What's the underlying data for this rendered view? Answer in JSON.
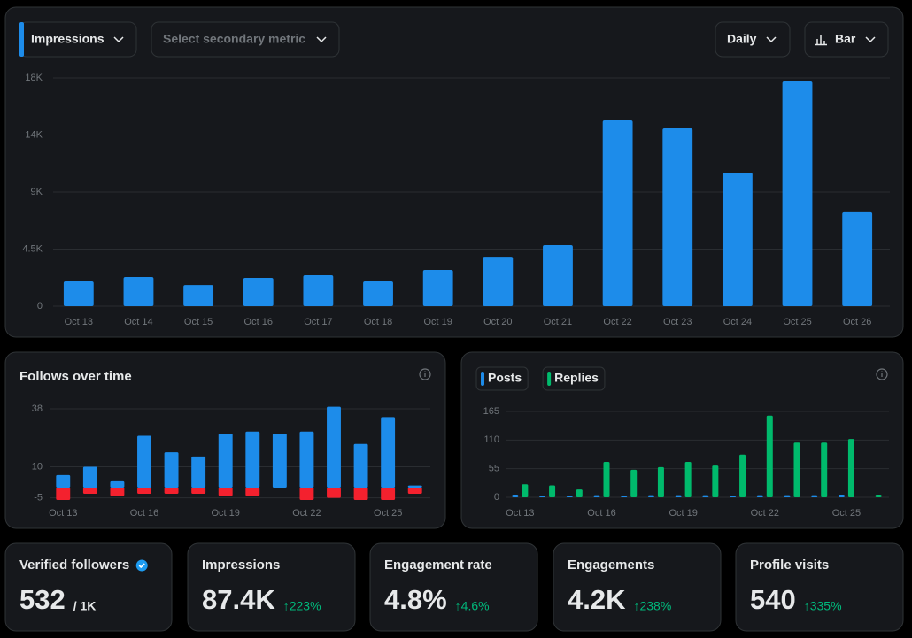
{
  "controls": {
    "primary_metric": "Impressions",
    "secondary_metric": "Select secondary metric",
    "interval": "Daily",
    "chart_type": "Bar"
  },
  "chart_data": [
    {
      "type": "bar",
      "categories": [
        "Oct 13",
        "Oct 14",
        "Oct 15",
        "Oct 16",
        "Oct 17",
        "Oct 18",
        "Oct 19",
        "Oct 20",
        "Oct 21",
        "Oct 22",
        "Oct 23",
        "Oct 24",
        "Oct 25",
        "Oct 26"
      ],
      "values": [
        1950,
        2300,
        1670,
        2230,
        2440,
        1950,
        2860,
        3900,
        4810,
        14650,
        14020,
        10530,
        17720,
        7400
      ],
      "color": "#1d8cea",
      "ylim": [
        0,
        18000
      ],
      "yticks": [
        0,
        {
          "value": 4500,
          "label": "4.5K"
        },
        {
          "value": 9000,
          "label": "9K"
        },
        {
          "value": 13500,
          "label": "14K"
        },
        {
          "value": 18000,
          "label": "18K"
        }
      ],
      "grid": true
    },
    {
      "type": "stacked_bar",
      "title": "Follows over time",
      "categories": [
        "Oct 13",
        null,
        null,
        "Oct 16",
        null,
        null,
        "Oct 19",
        null,
        null,
        "Oct 22",
        null,
        null,
        "Oct 25",
        null
      ],
      "series": [
        {
          "color": "#1d8cea",
          "values": [
            6,
            10,
            3,
            25,
            17,
            15,
            26,
            27,
            26,
            27,
            39,
            21,
            34,
            1
          ]
        },
        {
          "color": "#f4212e",
          "values": [
            -6,
            -3,
            -4,
            -3,
            -3,
            -3,
            -4,
            -4,
            0,
            -6,
            -5,
            -6,
            -6,
            -3
          ]
        }
      ],
      "ylim": [
        -6,
        41
      ],
      "yticks": [
        -5,
        10,
        38
      ],
      "grid": true
    },
    {
      "type": "grouped_bar",
      "categories": [
        "Oct 13",
        null,
        null,
        "Oct 16",
        null,
        null,
        "Oct 19",
        null,
        null,
        "Oct 22",
        null,
        null,
        "Oct 25",
        null
      ],
      "series": [
        {
          "name": "Posts",
          "color": "#1d8cea",
          "values": [
            5,
            2,
            2,
            4,
            3,
            4,
            4,
            4,
            3,
            4,
            4,
            4,
            5,
            0
          ]
        },
        {
          "name": "Replies",
          "color": "#00ba6c",
          "values": [
            25,
            23,
            15,
            68,
            53,
            58,
            68,
            61,
            82,
            157,
            105,
            105,
            112,
            5
          ]
        }
      ],
      "ylim": [
        0,
        165
      ],
      "yticks": [
        0,
        55,
        110,
        165
      ],
      "grid": true,
      "legend": "top-left"
    }
  ],
  "stats": [
    {
      "label": "Verified followers",
      "value": "532",
      "suffix": "/ 1K"
    },
    {
      "label": "Impressions",
      "value": "87.4K",
      "change": "↑223%"
    },
    {
      "label": "Engagement rate",
      "value": "4.8%",
      "change": "↑4.6%"
    },
    {
      "label": "Engagements",
      "value": "4.2K",
      "change": "↑238%"
    },
    {
      "label": "Profile visits",
      "value": "540",
      "change": "↑335%"
    }
  ]
}
